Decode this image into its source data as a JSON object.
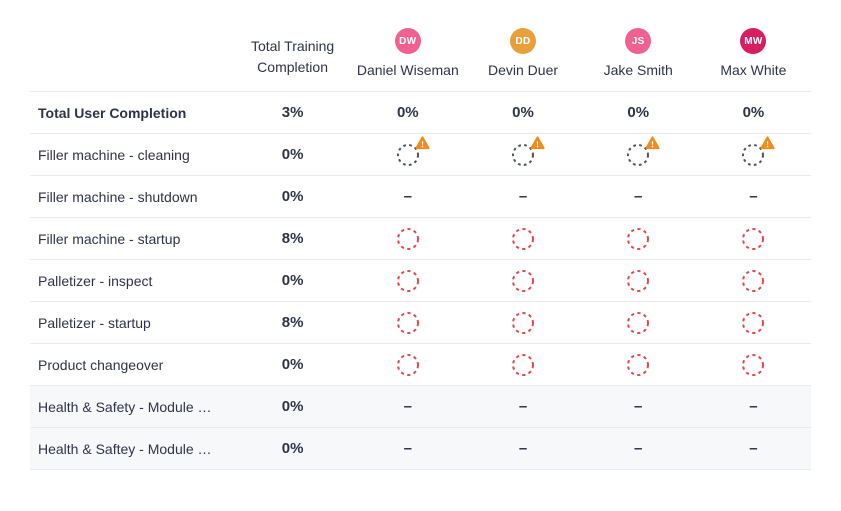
{
  "header": {
    "total_column_label": "Total Training Completion",
    "users": [
      {
        "initials": "DW",
        "name": "Daniel Wiseman",
        "color": "#f1618f"
      },
      {
        "initials": "DD",
        "name": "Devin Duer",
        "color": "#e8a03a"
      },
      {
        "initials": "JS",
        "name": "Jake Smith",
        "color": "#f1618f"
      },
      {
        "initials": "MW",
        "name": "Max White",
        "color": "#d81e60"
      }
    ]
  },
  "rows": [
    {
      "label": "Total User Completion",
      "bold": true,
      "shaded": false,
      "total": "3%",
      "cell_type": "text",
      "cells": [
        "0%",
        "0%",
        "0%",
        "0%"
      ]
    },
    {
      "label": "Filler machine - cleaning",
      "bold": false,
      "shaded": false,
      "total": "0%",
      "cell_type": "warning"
    },
    {
      "label": "Filler machine - shutdown",
      "bold": false,
      "shaded": false,
      "total": "0%",
      "cell_type": "dash"
    },
    {
      "label": "Filler machine - startup",
      "bold": false,
      "shaded": false,
      "total": "8%",
      "cell_type": "circle"
    },
    {
      "label": "Palletizer - inspect",
      "bold": false,
      "shaded": false,
      "total": "0%",
      "cell_type": "circle"
    },
    {
      "label": "Palletizer - startup",
      "bold": false,
      "shaded": false,
      "total": "8%",
      "cell_type": "circle"
    },
    {
      "label": "Product changeover",
      "bold": false,
      "shaded": false,
      "total": "0%",
      "cell_type": "circle"
    },
    {
      "label": "Health & Safety - Module …",
      "bold": false,
      "shaded": true,
      "total": "0%",
      "cell_type": "dash"
    },
    {
      "label": "Health & Saftey - Module …",
      "bold": false,
      "shaded": true,
      "total": "0%",
      "cell_type": "dash"
    }
  ],
  "glyphs": {
    "dash": "–"
  },
  "icons": {
    "incomplete": {
      "color": "#e5484d"
    },
    "overdue": {
      "circle_color": "#4d5460",
      "badge_color": "#f08c1e"
    }
  },
  "colors": {
    "text": "#2f3347",
    "row_border": "#e9ebef",
    "shaded_row_bg": "#f7f8fa"
  }
}
